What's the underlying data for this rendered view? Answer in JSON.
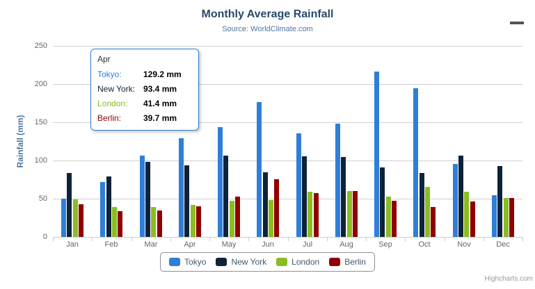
{
  "header": {
    "title": "Monthly Average Rainfall",
    "subtitle": "Source: WorldClimate.com"
  },
  "chart_data": {
    "type": "bar",
    "title": "Monthly Average Rainfall",
    "subtitle": "Source: WorldClimate.com",
    "categories": [
      "Jan",
      "Feb",
      "Mar",
      "Apr",
      "May",
      "Jun",
      "Jul",
      "Aug",
      "Sep",
      "Oct",
      "Nov",
      "Dec"
    ],
    "series": [
      {
        "name": "Tokyo",
        "color": "#2f7ed8",
        "values": [
          49.9,
          71.5,
          106.4,
          129.2,
          144.0,
          176.0,
          135.6,
          148.5,
          216.4,
          194.1,
          95.6,
          54.4
        ]
      },
      {
        "name": "New York",
        "color": "#0d233a",
        "values": [
          83.6,
          78.8,
          98.5,
          93.4,
          106.0,
          84.5,
          105.0,
          104.3,
          91.2,
          83.5,
          106.6,
          92.3
        ]
      },
      {
        "name": "London",
        "color": "#8bbc21",
        "values": [
          48.9,
          38.8,
          39.3,
          41.4,
          47.0,
          48.3,
          59.0,
          59.6,
          52.4,
          65.2,
          59.3,
          51.2
        ]
      },
      {
        "name": "Berlin",
        "color": "#910000",
        "values": [
          42.4,
          33.2,
          34.5,
          39.7,
          52.6,
          75.5,
          57.4,
          60.4,
          47.6,
          39.1,
          46.8,
          51.1
        ]
      }
    ],
    "xlabel": "",
    "ylabel": "Rainfall (mm)",
    "ylim": [
      0,
      250
    ],
    "yticks": [
      0,
      50,
      100,
      150,
      200,
      250
    ],
    "grid": true,
    "legend_position": "bottom"
  },
  "tooltip": {
    "title": "Apr",
    "rows": [
      {
        "label": "Tokyo:",
        "value": "129.2 mm",
        "color": "#2f7ed8"
      },
      {
        "label": "New York:",
        "value": "93.4 mm",
        "color": "#0d233a"
      },
      {
        "label": "London:",
        "value": "41.4 mm",
        "color": "#8bbc21"
      },
      {
        "label": "Berlin:",
        "value": "39.7 mm",
        "color": "#910000"
      }
    ]
  },
  "credits": {
    "label": "Highcharts.com"
  },
  "icons": {
    "context_menu": "hamburger-menu-icon"
  },
  "colors": {
    "title": "#274b6d",
    "subtitle": "#4d759e",
    "axis_label": "#666666",
    "axis_line": "#c0d0e0",
    "gridline": "#cfcfcf",
    "legend_text": "#3e576f",
    "tooltip_border": "#2f7ed8"
  }
}
